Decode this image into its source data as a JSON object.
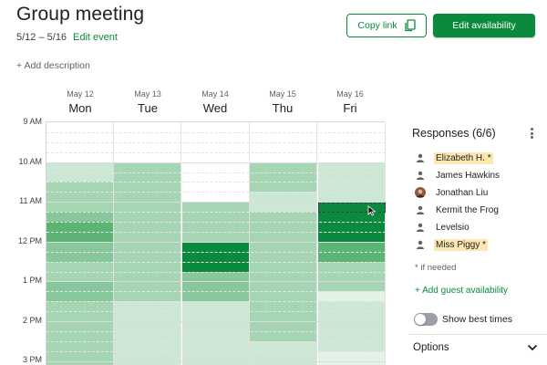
{
  "event": {
    "title": "Group meeting",
    "date_range": "5/12 – 5/16",
    "edit_event": "Edit event",
    "add_description": "+ Add description"
  },
  "actions": {
    "copy_link": "Copy link",
    "edit_availability": "Edit availability"
  },
  "days": [
    {
      "date": "May 12",
      "weekday": "Mon"
    },
    {
      "date": "May 13",
      "weekday": "Tue"
    },
    {
      "date": "May 14",
      "weekday": "Wed"
    },
    {
      "date": "May 15",
      "weekday": "Thu"
    },
    {
      "date": "May 16",
      "weekday": "Fri"
    }
  ],
  "times": [
    "9 AM",
    "10 AM",
    "11 AM",
    "12 PM",
    "1 PM",
    "2 PM",
    "3 PM"
  ],
  "slot_counts_max": 6,
  "availability_slots_per_day": [
    [
      0,
      0,
      0,
      0,
      2,
      2,
      3,
      3,
      3,
      4,
      5,
      5,
      4,
      4,
      3,
      3,
      4,
      4,
      3,
      3,
      3,
      3,
      3,
      3,
      3,
      3
    ],
    [
      0,
      0,
      0,
      0,
      3,
      3,
      3,
      3,
      3,
      3,
      3,
      3,
      3,
      3,
      3,
      3,
      3,
      3,
      2,
      2,
      2,
      2,
      2,
      2,
      2,
      2
    ],
    [
      0,
      0,
      0,
      0,
      0,
      0,
      0,
      0,
      3,
      3,
      3,
      3,
      6,
      6,
      6,
      4,
      4,
      4,
      2,
      2,
      2,
      2,
      2,
      2,
      2,
      2
    ],
    [
      0,
      0,
      0,
      0,
      3,
      3,
      3,
      2,
      2,
      3,
      3,
      3,
      3,
      3,
      3,
      3,
      3,
      3,
      3,
      3,
      3,
      3,
      2,
      2,
      2,
      2
    ],
    [
      0,
      0,
      0,
      0,
      2,
      2,
      2,
      2,
      6,
      6,
      6,
      6,
      5,
      5,
      3,
      3,
      3,
      1,
      2,
      2,
      2,
      2,
      2,
      1,
      1,
      1
    ]
  ],
  "responses": {
    "title": "Responses (6/6)",
    "people": [
      {
        "name": "Elizabeth H. *",
        "highlight": true,
        "avatar": "person-icon"
      },
      {
        "name": "James Hawkins",
        "highlight": false,
        "avatar": "person-icon"
      },
      {
        "name": "Jonathan Liu",
        "highlight": false,
        "avatar": "photo-avatar"
      },
      {
        "name": "Kermit the Frog",
        "highlight": false,
        "avatar": "person-icon"
      },
      {
        "name": "Levelsio",
        "highlight": false,
        "avatar": "person-icon"
      },
      {
        "name": "Miss Piggy *",
        "highlight": true,
        "avatar": "person-icon"
      }
    ],
    "if_needed_note": "* if needed",
    "add_guest": "+ Add guest availability"
  },
  "best_times": {
    "label": "Show best times",
    "enabled": false
  },
  "options": {
    "label": "Options"
  },
  "colors": {
    "accent": "#0b8a3e",
    "highlight": "#fde7b0",
    "levels": [
      "#ffffff",
      "#e3f1e7",
      "#cde7d5",
      "#a6d5b4",
      "#88c79b",
      "#5bb474",
      "#0b8a3e"
    ]
  }
}
